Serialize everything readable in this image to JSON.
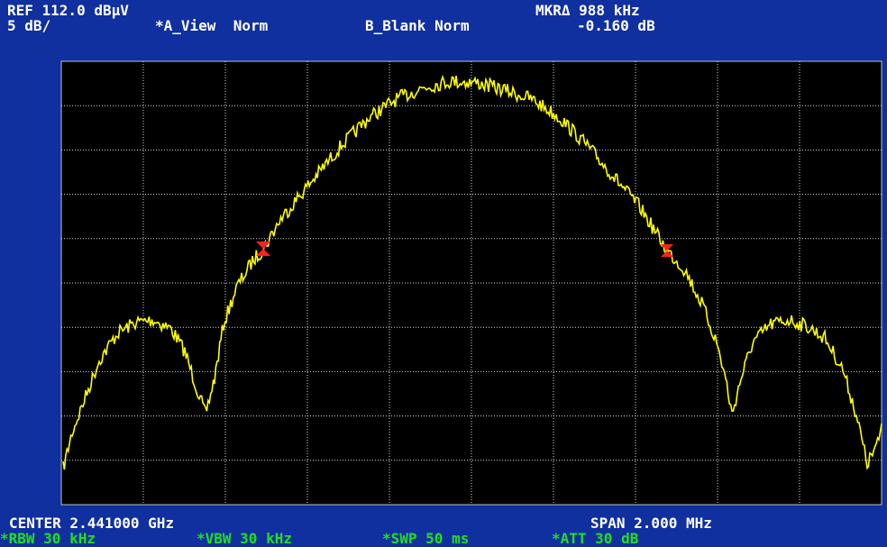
{
  "header": {
    "ref": "REF 112.0 dBµV",
    "scale": "5 dB/",
    "a_view": "*A_View  Norm",
    "b_blank": "B_Blank Norm",
    "marker": "MKRΔ 988 kHz",
    "marker_value": "-0.160 dB"
  },
  "footer": {
    "center": "CENTER 2.441000 GHz",
    "span": "SPAN 2.000 MHz",
    "rbw": "*RBW 30 kHz",
    "vbw": "*VBW 30 kHz",
    "swp": "*SWP 50 ms",
    "att": "*ATT 30 dB"
  }
}
